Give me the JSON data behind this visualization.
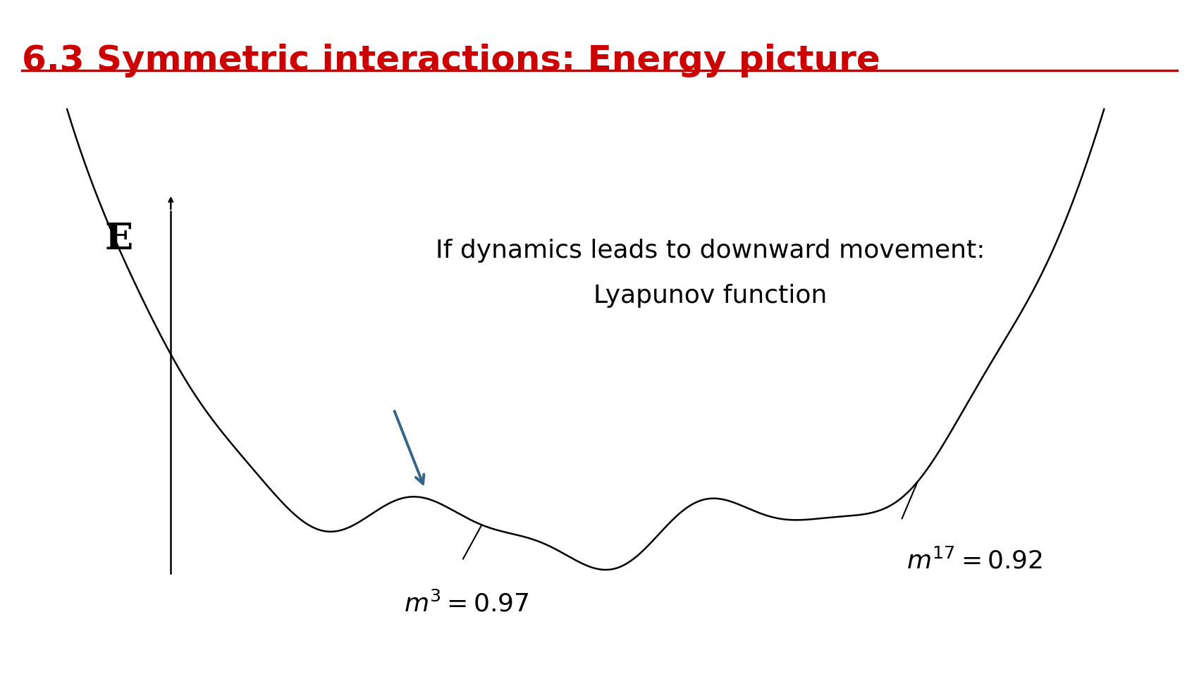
{
  "title": "6.3 Symmetric interactions: Energy picture",
  "title_color": "#cc0000",
  "title_fontsize": 36,
  "background_color": "#ffffff",
  "ylabel": "E",
  "annotation_line1": "If dynamics leads to downward movement:",
  "annotation_line2": "Lyapunov function",
  "annotation_fontsize": 26,
  "label_m3": "m^3 = 0.97",
  "label_m17": "m^{17} = 0.92",
  "label_fontsize": 26,
  "arrow_color": "#336688",
  "curve_color": "#000000",
  "axis_color": "#000000",
  "redline_color": "#cc0000"
}
